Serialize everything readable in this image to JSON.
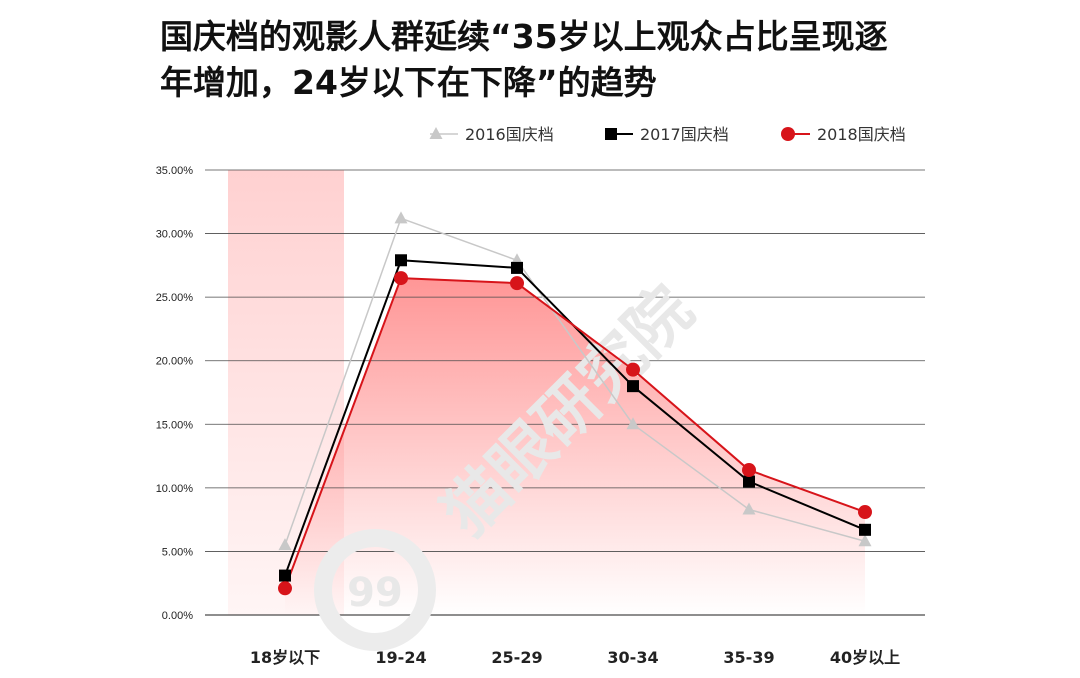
{
  "title_lines": [
    "国庆档的观影人群延续“35岁以上观众占比呈现逐",
    "年增加，24岁以下在下降”的趋势"
  ],
  "watermark": {
    "text": "猫眼研究院",
    "badge_text": "99"
  },
  "colors": {
    "series_2016": "#c8c8c8",
    "series_2017": "#000000",
    "series_2018": "#d7141a",
    "grid": "#4a4a4a",
    "highlight": "#ff6b6b"
  },
  "chart_data": {
    "type": "line",
    "categories": [
      "18岁以下",
      "19-24",
      "25-29",
      "30-34",
      "35-39",
      "40岁以上"
    ],
    "ylim": [
      0,
      35
    ],
    "yticks": [
      "0.00%",
      "5.00%",
      "10.00%",
      "15.00%",
      "20.00%",
      "25.00%",
      "30.00%",
      "35.00%"
    ],
    "grid": true,
    "legend_position": "top-right",
    "highlighted_category": "18岁以下",
    "series": [
      {
        "name": "2016国庆档",
        "marker": "triangle",
        "values": [
          5.5,
          31.2,
          27.9,
          15.0,
          8.3,
          5.8
        ]
      },
      {
        "name": "2017国庆档",
        "marker": "square",
        "values": [
          3.1,
          27.9,
          27.3,
          18.0,
          10.5,
          6.7
        ]
      },
      {
        "name": "2018国庆档",
        "marker": "circle",
        "values": [
          2.1,
          26.5,
          26.1,
          19.3,
          11.4,
          8.1
        ]
      }
    ]
  }
}
